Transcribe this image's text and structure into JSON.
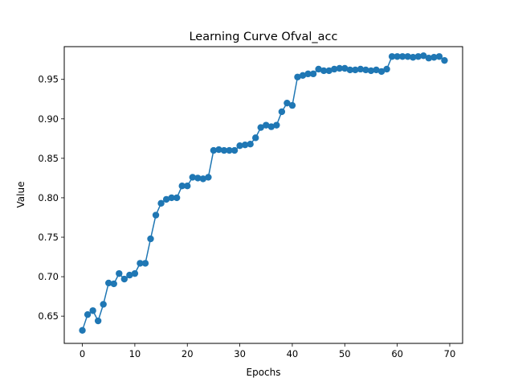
{
  "chart_data": {
    "type": "line",
    "title": "Learning Curve Ofval_acc",
    "xlabel": "Epochs",
    "ylabel": "Value",
    "xlim": [
      -3.45,
      72.45
    ],
    "ylim": [
      0.6155,
      0.9915
    ],
    "xticks": [
      0,
      10,
      20,
      30,
      40,
      50,
      60,
      70
    ],
    "yticks": [
      0.65,
      0.7,
      0.75,
      0.8,
      0.85,
      0.9,
      0.95
    ],
    "xtick_labels": [
      "0",
      "10",
      "20",
      "30",
      "40",
      "50",
      "60",
      "70"
    ],
    "ytick_labels": [
      "0.65",
      "0.70",
      "0.75",
      "0.80",
      "0.85",
      "0.90",
      "0.95"
    ],
    "grid": false,
    "marker": "circle",
    "color": "#1f77b4",
    "series": [
      {
        "x": [
          0,
          1,
          2,
          3,
          4,
          5,
          6,
          7,
          8,
          9,
          10,
          11,
          12,
          13,
          14,
          15,
          16,
          17,
          18,
          19,
          20,
          21,
          22,
          23,
          24,
          25,
          26,
          27,
          28,
          29,
          30,
          31,
          32,
          33,
          34,
          35,
          36,
          37,
          38,
          39,
          40,
          41,
          42,
          43,
          44,
          45,
          46,
          47,
          48,
          49,
          50,
          51,
          52,
          53,
          54,
          55,
          56,
          57,
          58,
          59,
          60,
          61,
          62,
          63,
          64,
          65,
          66,
          67,
          68,
          69
        ],
        "values": [
          0.632,
          0.652,
          0.657,
          0.644,
          0.665,
          0.692,
          0.691,
          0.704,
          0.697,
          0.702,
          0.704,
          0.717,
          0.717,
          0.748,
          0.778,
          0.793,
          0.798,
          0.8,
          0.8,
          0.815,
          0.815,
          0.826,
          0.825,
          0.824,
          0.826,
          0.86,
          0.861,
          0.86,
          0.86,
          0.86,
          0.866,
          0.867,
          0.868,
          0.876,
          0.889,
          0.892,
          0.89,
          0.892,
          0.909,
          0.92,
          0.917,
          0.953,
          0.955,
          0.957,
          0.957,
          0.963,
          0.961,
          0.961,
          0.963,
          0.964,
          0.964,
          0.962,
          0.962,
          0.963,
          0.962,
          0.961,
          0.962,
          0.96,
          0.963,
          0.979,
          0.979,
          0.979,
          0.979,
          0.978,
          0.979,
          0.98,
          0.977,
          0.978,
          0.979,
          0.974
        ]
      }
    ]
  }
}
